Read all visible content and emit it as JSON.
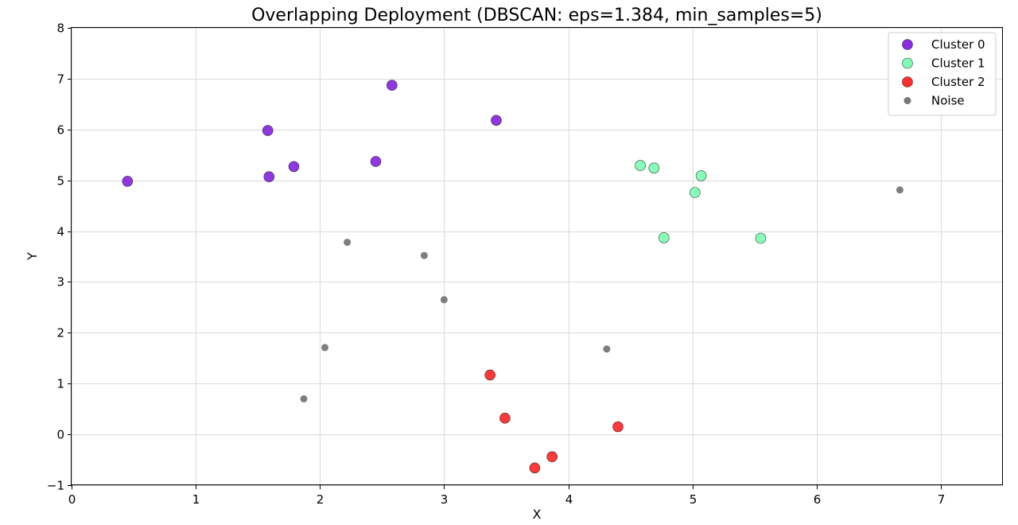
{
  "chart_data": {
    "type": "scatter",
    "title": "Overlapping Deployment (DBSCAN: eps=1.384, min_samples=5)",
    "xlabel": "X",
    "ylabel": "Y",
    "xlim": [
      0,
      7.5
    ],
    "ylim": [
      -1,
      8
    ],
    "xticks": [
      0,
      1,
      2,
      3,
      4,
      5,
      6,
      7
    ],
    "yticks": [
      -1,
      0,
      1,
      2,
      3,
      4,
      5,
      6,
      7,
      8
    ],
    "xtick_labels": [
      "0",
      "1",
      "2",
      "3",
      "4",
      "5",
      "6",
      "7"
    ],
    "ytick_labels": [
      "−1",
      "0",
      "1",
      "2",
      "3",
      "4",
      "5",
      "6",
      "7",
      "8"
    ],
    "grid": true,
    "legend_position": "top-right",
    "series": [
      {
        "name": "Cluster 0",
        "color": "#8a2be2",
        "marker": "large",
        "points": [
          [
            0.45,
            4.98
          ],
          [
            1.58,
            5.98
          ],
          [
            1.59,
            5.07
          ],
          [
            1.79,
            5.27
          ],
          [
            2.45,
            5.37
          ],
          [
            2.58,
            6.87
          ],
          [
            3.42,
            6.18
          ]
        ]
      },
      {
        "name": "Cluster 1",
        "color": "#80ffb4",
        "marker": "large",
        "points": [
          [
            4.58,
            5.29
          ],
          [
            4.69,
            5.24
          ],
          [
            5.07,
            5.09
          ],
          [
            5.02,
            4.76
          ],
          [
            4.77,
            3.87
          ],
          [
            5.55,
            3.86
          ]
        ]
      },
      {
        "name": "Cluster 2",
        "color": "#ff2d2d",
        "marker": "large",
        "points": [
          [
            3.37,
            1.17
          ],
          [
            3.49,
            0.32
          ],
          [
            3.73,
            -0.66
          ],
          [
            3.87,
            -0.44
          ],
          [
            4.4,
            0.15
          ]
        ]
      },
      {
        "name": "Noise",
        "color": "#777777",
        "marker": "small",
        "points": [
          [
            2.22,
            3.78
          ],
          [
            2.84,
            3.52
          ],
          [
            3.0,
            2.65
          ],
          [
            2.04,
            1.71
          ],
          [
            1.87,
            0.7
          ],
          [
            4.31,
            1.68
          ],
          [
            6.67,
            4.81
          ]
        ]
      }
    ]
  }
}
